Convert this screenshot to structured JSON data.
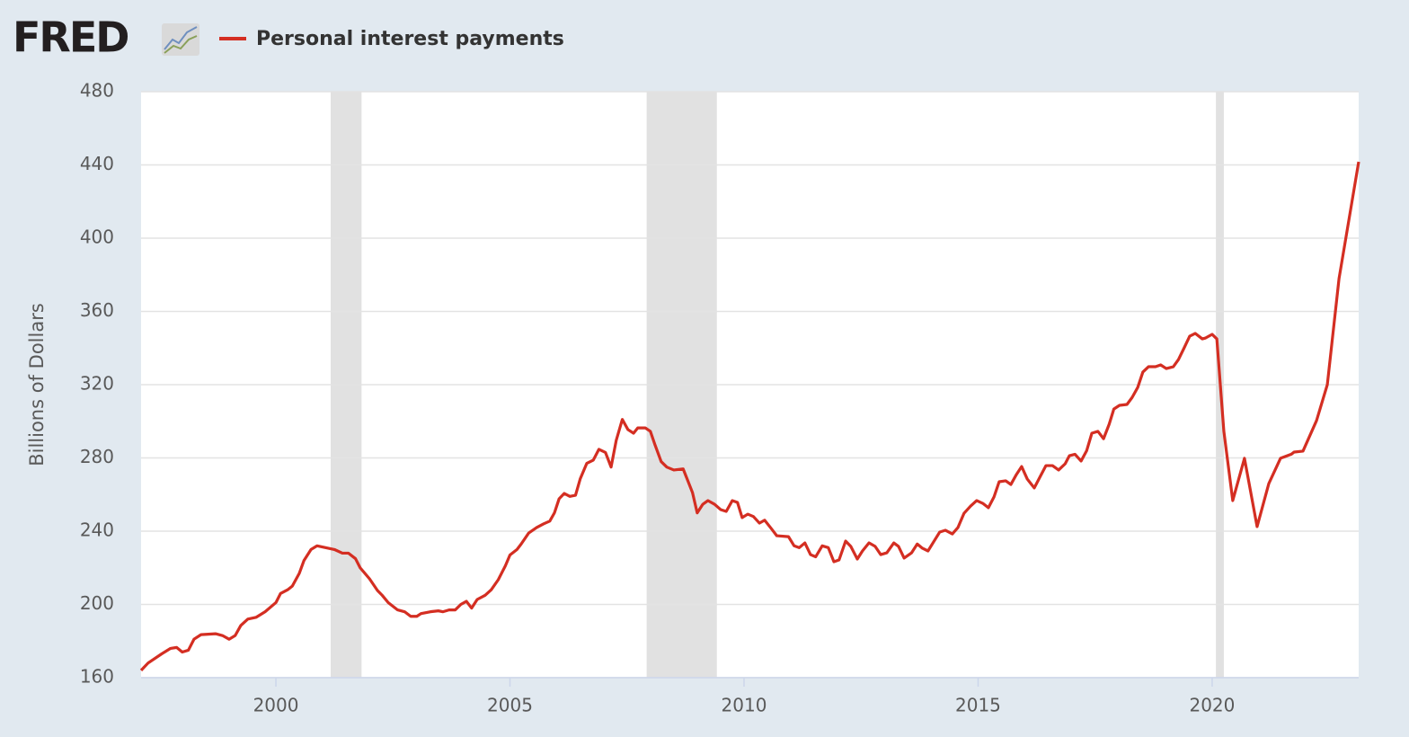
{
  "chart_data": {
    "type": "line",
    "brand": "FRED",
    "ylabel": "Billions of Dollars",
    "xlim": [
      1997.12,
      2023.13
    ],
    "xticks": [
      2000,
      2005,
      2010,
      2015,
      2020
    ],
    "ylim": [
      160,
      480
    ],
    "yticks": [
      160,
      200,
      240,
      280,
      320,
      360,
      400,
      440,
      480
    ],
    "grid": true,
    "recessions": [
      [
        2001.17,
        2001.83
      ],
      [
        2007.92,
        2009.42
      ],
      [
        2020.08,
        2020.25
      ]
    ],
    "recession_color": "#e1e1e1",
    "x": [
      1997.12,
      1997.27,
      1997.56,
      1997.75,
      1997.88,
      1998.0,
      1998.13,
      1998.25,
      1998.4,
      1998.71,
      1998.86,
      1999.0,
      1999.13,
      1999.25,
      1999.4,
      1999.58,
      1999.77,
      2000.0,
      2000.1,
      2000.25,
      2000.35,
      2000.5,
      2000.6,
      2000.75,
      2000.88,
      2001.06,
      2001.25,
      2001.42,
      2001.55,
      2001.7,
      2001.8,
      2002.0,
      2002.17,
      2002.27,
      2002.4,
      2002.6,
      2002.75,
      2002.88,
      2003.01,
      2003.1,
      2003.3,
      2003.47,
      2003.57,
      2003.7,
      2003.83,
      2003.95,
      2004.07,
      2004.18,
      2004.3,
      2004.47,
      2004.6,
      2004.75,
      2004.9,
      2005.0,
      2005.15,
      2005.24,
      2005.4,
      2005.57,
      2005.72,
      2005.85,
      2005.95,
      2006.05,
      2006.16,
      2006.28,
      2006.4,
      2006.5,
      2006.64,
      2006.78,
      2006.9,
      2007.04,
      2007.16,
      2007.27,
      2007.4,
      2007.52,
      2007.64,
      2007.73,
      2007.89,
      2008.0,
      2008.1,
      2008.23,
      2008.35,
      2008.5,
      2008.7,
      2008.9,
      2009.0,
      2009.12,
      2009.23,
      2009.37,
      2009.5,
      2009.62,
      2009.75,
      2009.86,
      2009.96,
      2010.08,
      2010.2,
      2010.33,
      2010.44,
      2010.58,
      2010.7,
      2010.95,
      2011.07,
      2011.18,
      2011.3,
      2011.42,
      2011.53,
      2011.67,
      2011.8,
      2011.92,
      2012.03,
      2012.17,
      2012.28,
      2012.42,
      2012.53,
      2012.67,
      2012.8,
      2012.92,
      2013.05,
      2013.2,
      2013.3,
      2013.42,
      2013.58,
      2013.7,
      2013.81,
      2013.93,
      2014.07,
      2014.18,
      2014.3,
      2014.45,
      2014.57,
      2014.7,
      2014.84,
      2014.97,
      2015.1,
      2015.22,
      2015.34,
      2015.45,
      2015.59,
      2015.7,
      2015.82,
      2015.93,
      2016.05,
      2016.2,
      2016.33,
      2016.45,
      2016.59,
      2016.72,
      2016.86,
      2016.95,
      2017.07,
      2017.2,
      2017.32,
      2017.43,
      2017.56,
      2017.68,
      2017.8,
      2017.9,
      2018.02,
      2018.18,
      2018.29,
      2018.41,
      2018.52,
      2018.64,
      2018.79,
      2018.9,
      2019.02,
      2019.17,
      2019.28,
      2019.4,
      2019.52,
      2019.64,
      2019.79,
      2019.86,
      2020.0,
      2020.1,
      2020.25,
      2020.44,
      2020.69,
      2020.96,
      2021.21,
      2021.46,
      2021.69,
      2021.75,
      2021.94,
      2022.23,
      2022.46,
      2022.71,
      2023.13
    ],
    "series": [
      {
        "name": "Personal interest payments",
        "color": "#d42e22",
        "values": [
          164,
          168,
          173,
          176,
          176.5,
          174,
          175,
          181,
          183.5,
          184,
          183,
          181,
          183,
          188.5,
          192,
          193,
          196,
          201,
          206,
          208,
          210,
          217,
          224,
          230,
          232,
          231,
          230,
          228,
          228,
          225,
          220,
          214,
          207.6,
          205,
          201,
          197,
          196,
          193.5,
          193.5,
          195,
          196,
          196.5,
          196,
          197,
          197,
          200,
          201.7,
          198,
          202.7,
          205,
          208,
          213.5,
          221,
          227,
          230,
          233,
          239,
          242,
          244,
          245.5,
          250,
          257.7,
          260.6,
          259,
          259.6,
          268.5,
          277,
          278.8,
          284.7,
          283,
          275,
          289.6,
          301,
          295.5,
          293.5,
          296.4,
          296.4,
          294.5,
          287,
          278,
          275,
          273.4,
          274,
          261,
          250,
          254.7,
          256.7,
          254.7,
          251.8,
          250.8,
          256.7,
          255.7,
          247.4,
          249.3,
          248,
          244.4,
          246,
          241.5,
          237.5,
          237,
          232,
          231,
          233.6,
          227.2,
          226,
          232,
          231,
          223.3,
          224.3,
          234.6,
          231.7,
          224.8,
          229.2,
          233.6,
          231.7,
          227.2,
          228.2,
          233.6,
          231.7,
          225.3,
          228.2,
          233,
          230.7,
          229.2,
          235,
          239.5,
          240.5,
          238.5,
          242,
          249.8,
          253.7,
          256.7,
          255.2,
          252.8,
          258.7,
          267,
          267.5,
          265.5,
          271,
          275.3,
          268.5,
          263.6,
          270,
          275.8,
          275.8,
          273.4,
          276.8,
          281.2,
          282,
          278.3,
          284,
          293.5,
          294.5,
          290.5,
          298.4,
          306.7,
          308.7,
          309.2,
          313,
          318.5,
          326.9,
          329.8,
          329.8,
          330.8,
          328.8,
          329.8,
          333.7,
          340,
          346.5,
          348,
          345,
          345.5,
          347.5,
          345,
          294.5,
          256.7,
          279.8,
          242.5,
          266,
          279.8,
          282,
          283.2,
          283.7,
          300.4,
          320,
          377.9,
          441.7
        ]
      }
    ]
  }
}
